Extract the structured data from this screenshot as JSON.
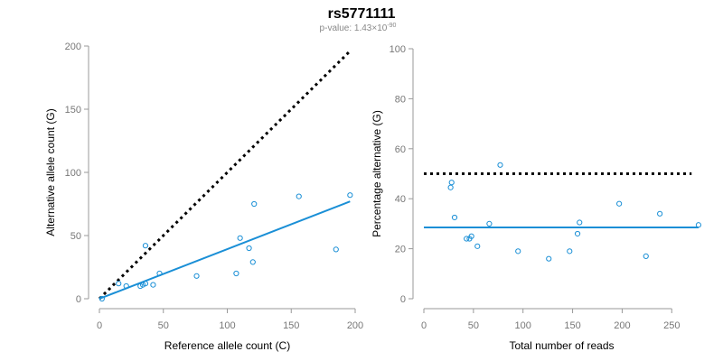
{
  "title": "rs5771111",
  "subtitle": {
    "prefix": "p-value: 1.43×10",
    "exponent": "-90"
  },
  "colors": {
    "points": "#1a8fd6",
    "fit": "#1a8fd6",
    "reference": "#000000",
    "axis": "#999999",
    "tick_text": "#777777"
  },
  "chart_data": [
    {
      "type": "scatter",
      "xlabel": "Reference allele count (C)",
      "ylabel": "Alternative allele count (G)",
      "xlim": [
        0,
        200
      ],
      "ylim": [
        0,
        200
      ],
      "xticks": [
        0,
        50,
        100,
        150,
        200
      ],
      "yticks": [
        0,
        50,
        100,
        150,
        200
      ],
      "points": [
        {
          "x": 2,
          "y": 0
        },
        {
          "x": 15,
          "y": 12
        },
        {
          "x": 21,
          "y": 10
        },
        {
          "x": 32,
          "y": 10
        },
        {
          "x": 34,
          "y": 11
        },
        {
          "x": 36,
          "y": 12
        },
        {
          "x": 36,
          "y": 42
        },
        {
          "x": 42,
          "y": 11
        },
        {
          "x": 47,
          "y": 20
        },
        {
          "x": 76,
          "y": 18
        },
        {
          "x": 107,
          "y": 20
        },
        {
          "x": 110,
          "y": 48
        },
        {
          "x": 117,
          "y": 40
        },
        {
          "x": 120,
          "y": 29
        },
        {
          "x": 121,
          "y": 75
        },
        {
          "x": 156,
          "y": 81
        },
        {
          "x": 185,
          "y": 39
        },
        {
          "x": 196,
          "y": 82
        }
      ],
      "fit_line": {
        "x": [
          0,
          196
        ],
        "y": [
          0,
          77
        ]
      },
      "reference_line": {
        "x": [
          0,
          196
        ],
        "y": [
          0,
          196
        ]
      },
      "grid": false
    },
    {
      "type": "scatter",
      "xlabel": "Total number of reads",
      "ylabel": "Percentage alternative (G)",
      "xlim": [
        0,
        278
      ],
      "ylim": [
        0,
        100
      ],
      "xticks": [
        0,
        50,
        100,
        150,
        200,
        250
      ],
      "yticks": [
        0,
        20,
        40,
        60,
        80,
        100
      ],
      "points": [
        {
          "x": 27,
          "y": 44.5
        },
        {
          "x": 28,
          "y": 46.5
        },
        {
          "x": 31,
          "y": 32.5
        },
        {
          "x": 43,
          "y": 24
        },
        {
          "x": 46,
          "y": 24
        },
        {
          "x": 48,
          "y": 25
        },
        {
          "x": 54,
          "y": 21
        },
        {
          "x": 66,
          "y": 30
        },
        {
          "x": 77,
          "y": 53.5
        },
        {
          "x": 95,
          "y": 19
        },
        {
          "x": 126,
          "y": 16
        },
        {
          "x": 147,
          "y": 19
        },
        {
          "x": 155,
          "y": 26
        },
        {
          "x": 157,
          "y": 30.5
        },
        {
          "x": 197,
          "y": 38
        },
        {
          "x": 224,
          "y": 17
        },
        {
          "x": 238,
          "y": 34
        },
        {
          "x": 277,
          "y": 29.5
        }
      ],
      "fit_line": {
        "x": [
          0,
          277
        ],
        "y": [
          28.5,
          28.5
        ]
      },
      "reference_line": {
        "x": [
          0,
          270
        ],
        "y": [
          50,
          50
        ]
      },
      "grid": false
    }
  ]
}
